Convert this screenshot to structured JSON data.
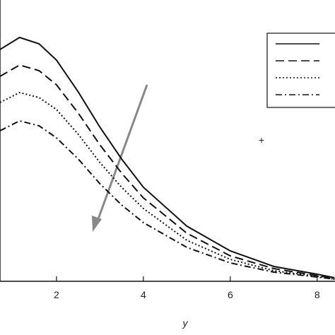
{
  "chart_data": {
    "type": "line",
    "x_label": "y",
    "x": [
      0.7,
      1.15,
      1.6,
      2,
      2.5,
      3,
      3.5,
      4,
      5,
      6,
      7,
      8,
      8.4
    ],
    "series": [
      {
        "color": "#111111",
        "dash": "none",
        "values": [
          3.28,
          3.45,
          3.36,
          3.13,
          2.68,
          2.18,
          1.73,
          1.33,
          0.78,
          0.43,
          0.21,
          0.1,
          0.05
        ]
      },
      {
        "color": "#111111",
        "dash": "12 6",
        "values": [
          2.9,
          3.06,
          2.98,
          2.78,
          2.38,
          1.93,
          1.53,
          1.18,
          0.68,
          0.36,
          0.18,
          0.08,
          0.04
        ]
      },
      {
        "color": "#111111",
        "dash": "2 3",
        "values": [
          2.53,
          2.67,
          2.6,
          2.43,
          2.08,
          1.68,
          1.33,
          1.03,
          0.58,
          0.31,
          0.15,
          0.07,
          0.03
        ]
      },
      {
        "color": "#111111",
        "dash": "9 4 2 4",
        "values": [
          2.13,
          2.27,
          2.2,
          2.03,
          1.73,
          1.38,
          1.08,
          0.83,
          0.48,
          0.26,
          0.13,
          0.06,
          0.03
        ]
      }
    ],
    "xlim": [
      0.7,
      8.41
    ],
    "ylim": [
      0,
      4
    ],
    "xticks": [
      2,
      4,
      6,
      8
    ]
  }
}
